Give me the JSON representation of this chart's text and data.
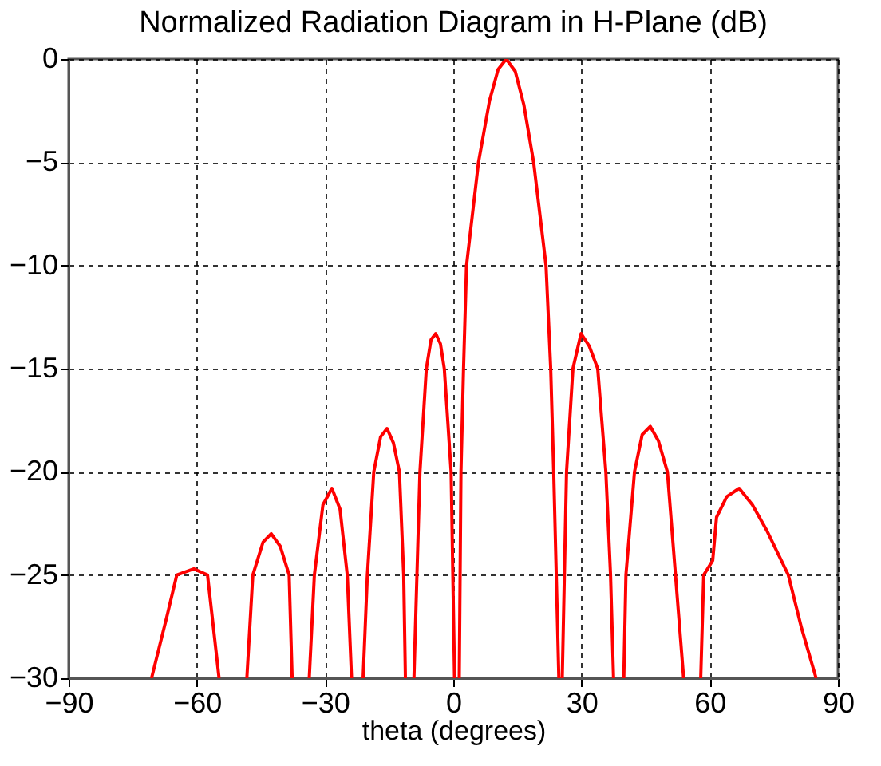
{
  "chart_data": {
    "type": "line",
    "title": "Normalized Radiation Diagram in H-Plane (dB)",
    "xlabel": "theta (degrees)",
    "x": [
      -70.6,
      -67,
      -64.7,
      -60.7,
      -57.5,
      -54.8,
      -52,
      -48.3,
      -46.9,
      -44.5,
      -42.6,
      -40.5,
      -38.4,
      -37.7,
      -36,
      -33.7,
      -32.5,
      -30.5,
      -28.4,
      -26.5,
      -24.8,
      -23.8,
      -22.5,
      -21.1,
      -20.1,
      -18.6,
      -17,
      -15.5,
      -14,
      -12.6,
      -11.6,
      -11.2,
      -10.2,
      -9.2,
      -7.8,
      -6.3,
      -5.2,
      -4.1,
      -3,
      -2.1,
      -0.5,
      0.3,
      0.9,
      1.4,
      1.8,
      2.4,
      3.1,
      5.9,
      8.5,
      10.5,
      12.4,
      14.5,
      16.5,
      18.8,
      21.7,
      22.8,
      23.5,
      24.7,
      25.1,
      25.5,
      26.5,
      28,
      29.9,
      31.8,
      33.8,
      35.7,
      36.8,
      37.5,
      38.5,
      39.9,
      40.4,
      42.4,
      44.2,
      46.1,
      48,
      50.1,
      52,
      53.9,
      56,
      57.9,
      58.6,
      60.7,
      61.6,
      64,
      66.9,
      70,
      73.5,
      78.4,
      81.4,
      84.9
    ],
    "series": [
      {
        "color": "#ff0000",
        "values": [
          -30,
          -27,
          -25,
          -24.7,
          -25,
          -30,
          null,
          -30,
          -25,
          -23.4,
          -23.0,
          -23.6,
          -25,
          -30,
          null,
          -30,
          -25,
          -21.6,
          -20.8,
          -21.8,
          -25,
          -30,
          null,
          -30,
          -25,
          -20,
          -18.3,
          -17.9,
          -18.6,
          -20,
          -25,
          -30,
          null,
          -30,
          -20,
          -15,
          -13.6,
          -13.3,
          -13.8,
          -15,
          -20,
          -30,
          null,
          -30,
          -20,
          -15,
          -10,
          -5,
          -2,
          -0.5,
          0,
          -0.6,
          -2.2,
          -5,
          -10,
          -15,
          -20,
          -30,
          null,
          -30,
          -20,
          -15,
          -13.3,
          -13.9,
          -15,
          -20,
          -25,
          -30,
          null,
          -30,
          -25,
          -20,
          -18.2,
          -17.8,
          -18.5,
          -20,
          -25,
          -30,
          null,
          -30,
          -25,
          -24.3,
          -22.2,
          -21.2,
          -20.8,
          -21.6,
          -22.9,
          -25,
          -27.5,
          -30
        ]
      }
    ],
    "xlim": [
      -90,
      90
    ],
    "xticks": [
      -90,
      -60,
      -30,
      0,
      30,
      60,
      90
    ],
    "ylim": [
      -30,
      0
    ],
    "yticks": [
      -30,
      -25,
      -20,
      -15,
      -10,
      -5,
      0
    ],
    "grid": true,
    "line_style": "solid",
    "marker": "none",
    "legend": false
  }
}
